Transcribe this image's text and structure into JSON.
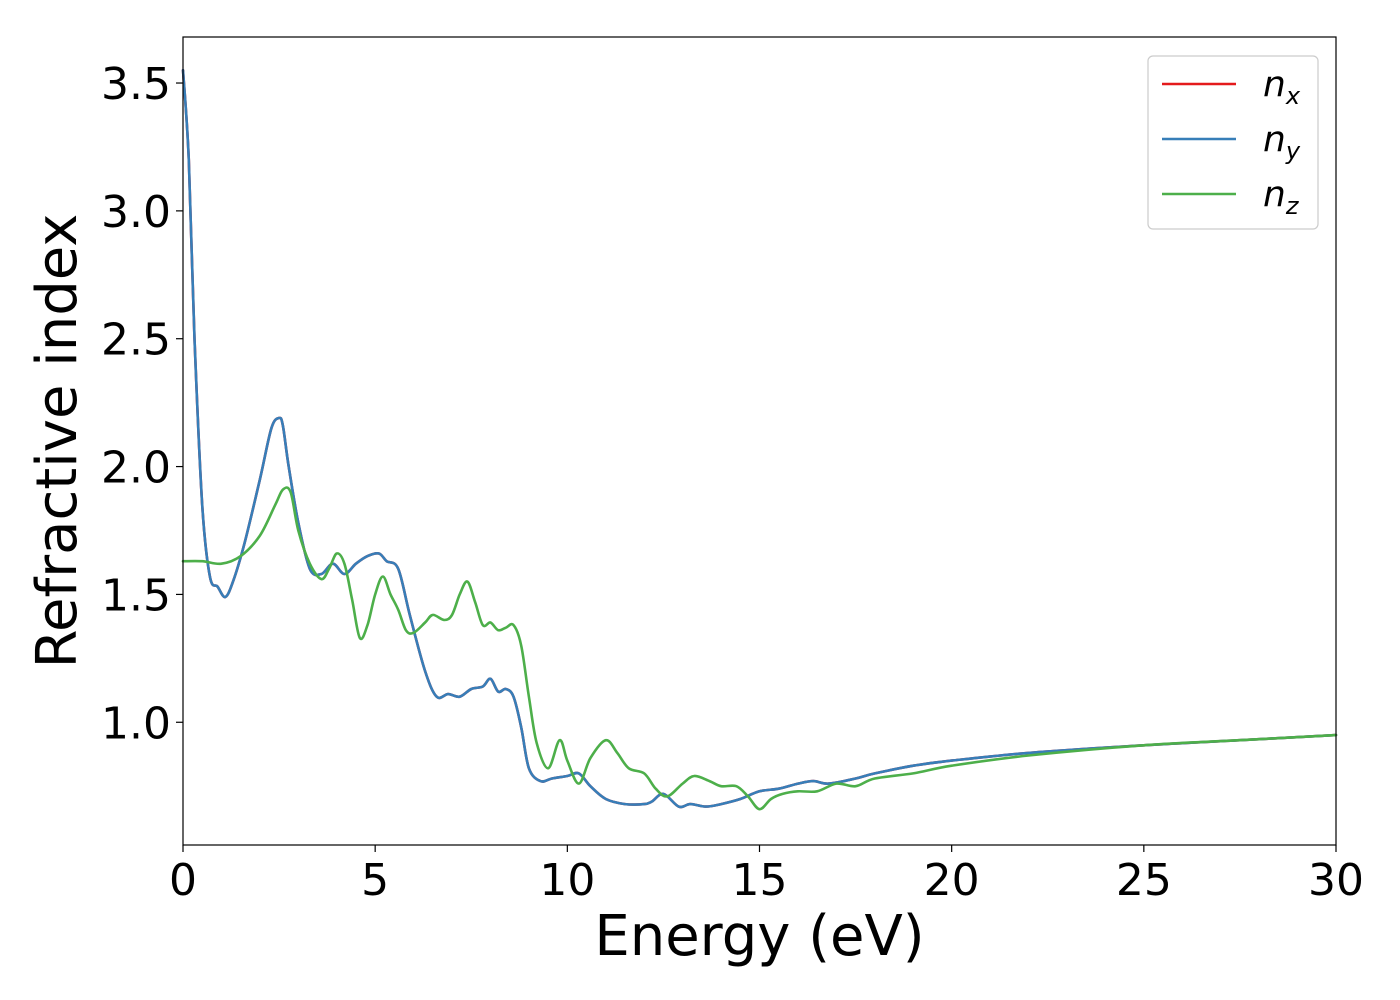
{
  "chart_data": {
    "type": "line",
    "xlabel": "Energy (eV)",
    "ylabel": "Refractive index",
    "xlim": [
      0,
      30
    ],
    "ylim": [
      0.52,
      3.68
    ],
    "xticks": [
      0,
      5,
      10,
      15,
      20,
      25,
      30
    ],
    "xtick_labels": [
      "0",
      "5",
      "10",
      "15",
      "20",
      "25",
      "30"
    ],
    "yticks": [
      1.0,
      1.5,
      2.0,
      2.5,
      3.0,
      3.5
    ],
    "ytick_labels": [
      "1.0",
      "1.5",
      "2.0",
      "2.5",
      "3.0",
      "3.5"
    ],
    "grid": false,
    "legend_position": "top-right",
    "series": [
      {
        "name": "n_x",
        "label_base": "n",
        "label_sub": "x",
        "color": "#e41a1c",
        "x": [
          0,
          0.15,
          0.3,
          0.5,
          0.7,
          0.9,
          1.1,
          1.3,
          1.6,
          2.0,
          2.3,
          2.5,
          2.6,
          2.75,
          3.0,
          3.3,
          3.6,
          3.9,
          4.2,
          4.5,
          4.8,
          5.1,
          5.3,
          5.6,
          5.9,
          6.3,
          6.6,
          6.9,
          7.2,
          7.5,
          7.8,
          8.0,
          8.2,
          8.4,
          8.6,
          8.8,
          9.0,
          9.3,
          9.6,
          10.0,
          10.3,
          10.6,
          11.0,
          11.5,
          12.0,
          12.2,
          12.5,
          12.9,
          13.2,
          13.6,
          14.0,
          14.5,
          15.0,
          15.5,
          16.0,
          16.4,
          16.8,
          17.5,
          18.0,
          19.0,
          20.0,
          22.0,
          25.0,
          27.5,
          30.0
        ],
        "values": [
          3.55,
          3.2,
          2.5,
          1.85,
          1.57,
          1.53,
          1.49,
          1.55,
          1.7,
          1.95,
          2.15,
          2.19,
          2.16,
          2.0,
          1.78,
          1.6,
          1.58,
          1.62,
          1.58,
          1.62,
          1.65,
          1.66,
          1.63,
          1.6,
          1.42,
          1.2,
          1.1,
          1.11,
          1.1,
          1.13,
          1.14,
          1.17,
          1.12,
          1.13,
          1.1,
          0.98,
          0.82,
          0.77,
          0.78,
          0.79,
          0.8,
          0.75,
          0.7,
          0.68,
          0.68,
          0.69,
          0.72,
          0.67,
          0.68,
          0.67,
          0.68,
          0.7,
          0.73,
          0.74,
          0.76,
          0.77,
          0.76,
          0.78,
          0.8,
          0.83,
          0.85,
          0.88,
          0.91,
          0.93,
          0.95
        ]
      },
      {
        "name": "n_y",
        "label_base": "n",
        "label_sub": "y",
        "color": "#377eb8",
        "x": [
          0,
          0.15,
          0.3,
          0.5,
          0.7,
          0.9,
          1.1,
          1.3,
          1.6,
          2.0,
          2.3,
          2.5,
          2.6,
          2.75,
          3.0,
          3.3,
          3.6,
          3.9,
          4.2,
          4.5,
          4.8,
          5.1,
          5.3,
          5.6,
          5.9,
          6.3,
          6.6,
          6.9,
          7.2,
          7.5,
          7.8,
          8.0,
          8.2,
          8.4,
          8.6,
          8.8,
          9.0,
          9.3,
          9.6,
          10.0,
          10.3,
          10.6,
          11.0,
          11.5,
          12.0,
          12.2,
          12.5,
          12.9,
          13.2,
          13.6,
          14.0,
          14.5,
          15.0,
          15.5,
          16.0,
          16.4,
          16.8,
          17.5,
          18.0,
          19.0,
          20.0,
          22.0,
          25.0,
          27.5,
          30.0
        ],
        "values": [
          3.55,
          3.2,
          2.5,
          1.85,
          1.57,
          1.53,
          1.49,
          1.55,
          1.7,
          1.95,
          2.15,
          2.19,
          2.16,
          2.0,
          1.78,
          1.6,
          1.58,
          1.62,
          1.58,
          1.62,
          1.65,
          1.66,
          1.63,
          1.6,
          1.42,
          1.2,
          1.1,
          1.11,
          1.1,
          1.13,
          1.14,
          1.17,
          1.12,
          1.13,
          1.1,
          0.98,
          0.82,
          0.77,
          0.78,
          0.79,
          0.8,
          0.75,
          0.7,
          0.68,
          0.68,
          0.69,
          0.72,
          0.67,
          0.68,
          0.67,
          0.68,
          0.7,
          0.73,
          0.74,
          0.76,
          0.77,
          0.76,
          0.78,
          0.8,
          0.83,
          0.85,
          0.88,
          0.91,
          0.93,
          0.95
        ]
      },
      {
        "name": "n_z",
        "label_base": "n",
        "label_sub": "z",
        "color": "#4daf4a",
        "x": [
          0,
          0.5,
          1.0,
          1.5,
          2.0,
          2.4,
          2.6,
          2.8,
          3.0,
          3.3,
          3.6,
          3.8,
          4.0,
          4.2,
          4.4,
          4.6,
          4.8,
          5.0,
          5.2,
          5.4,
          5.6,
          5.8,
          6.0,
          6.3,
          6.5,
          6.8,
          7.0,
          7.2,
          7.4,
          7.6,
          7.8,
          8.0,
          8.2,
          8.4,
          8.6,
          8.8,
          9.0,
          9.2,
          9.5,
          9.8,
          10.0,
          10.3,
          10.6,
          11.0,
          11.3,
          11.6,
          12.0,
          12.3,
          12.6,
          13.0,
          13.3,
          13.7,
          14.0,
          14.4,
          14.7,
          15.0,
          15.3,
          15.6,
          16.0,
          16.5,
          17.0,
          17.5,
          18.0,
          19.0,
          20.0,
          22.0,
          25.0,
          27.5,
          30.0
        ],
        "values": [
          1.63,
          1.63,
          1.62,
          1.65,
          1.73,
          1.85,
          1.91,
          1.9,
          1.75,
          1.62,
          1.56,
          1.6,
          1.66,
          1.62,
          1.48,
          1.33,
          1.38,
          1.5,
          1.57,
          1.5,
          1.44,
          1.36,
          1.35,
          1.39,
          1.42,
          1.4,
          1.42,
          1.5,
          1.55,
          1.47,
          1.38,
          1.39,
          1.36,
          1.37,
          1.38,
          1.3,
          1.1,
          0.92,
          0.82,
          0.93,
          0.85,
          0.76,
          0.86,
          0.93,
          0.88,
          0.82,
          0.8,
          0.74,
          0.71,
          0.76,
          0.79,
          0.77,
          0.75,
          0.75,
          0.71,
          0.66,
          0.7,
          0.72,
          0.73,
          0.73,
          0.76,
          0.75,
          0.78,
          0.8,
          0.83,
          0.87,
          0.91,
          0.93,
          0.95
        ]
      }
    ]
  }
}
